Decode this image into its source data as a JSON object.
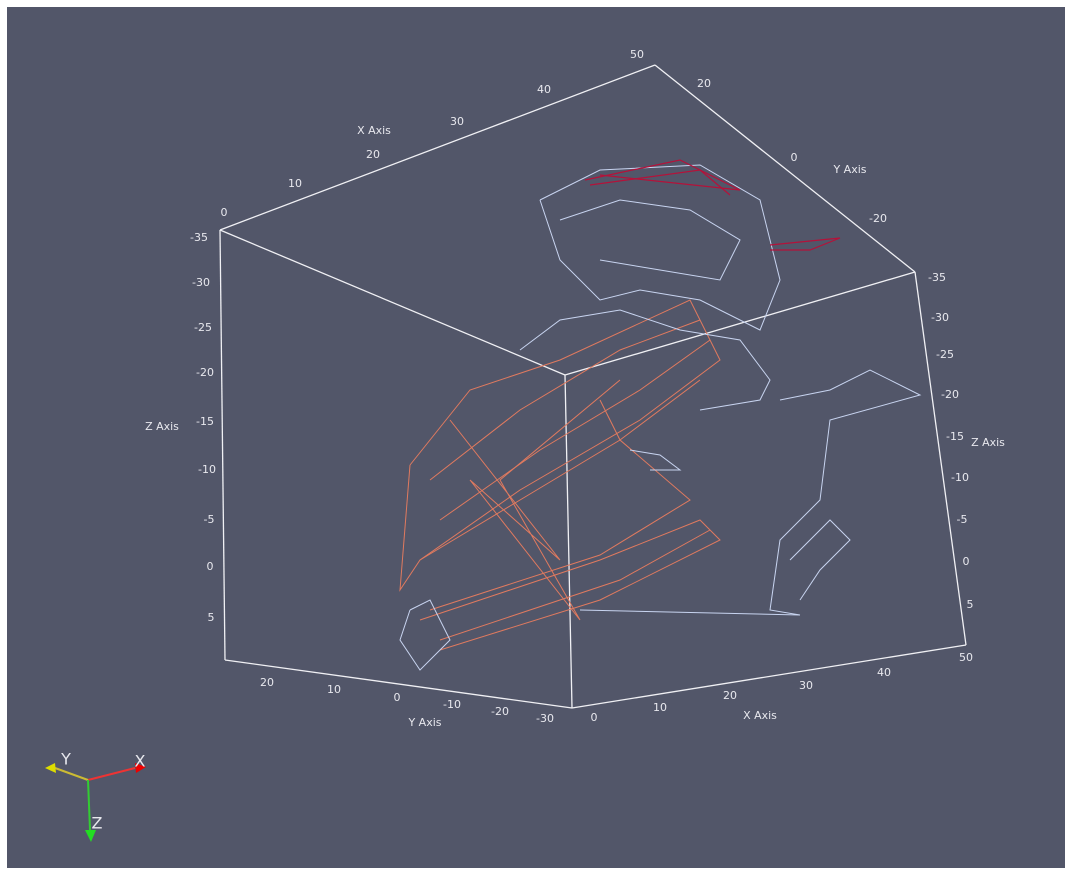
{
  "axes": {
    "top_x": {
      "label": "X Axis",
      "ticks": [
        "0",
        "10",
        "20",
        "30",
        "40",
        "50"
      ]
    },
    "top_y": {
      "label": "Y Axis",
      "ticks": [
        "20",
        "0",
        "-20"
      ]
    },
    "left_z": {
      "label": "Z Axis",
      "ticks": [
        "-35",
        "-30",
        "-25",
        "-20",
        "-15",
        "-10",
        "-5",
        "0",
        "5"
      ]
    },
    "right_z": {
      "label": "Z Axis",
      "ticks": [
        "-35",
        "-30",
        "-25",
        "-20",
        "-15",
        "-10",
        "-5",
        "0",
        "5"
      ]
    },
    "bottom_y": {
      "label": "Y Axis",
      "ticks": [
        "20",
        "10",
        "0",
        "-10",
        "-20",
        "-30"
      ]
    },
    "bottom_x": {
      "label": "X Axis",
      "ticks": [
        "0",
        "10",
        "20",
        "30",
        "40",
        "50"
      ]
    }
  },
  "orientation": {
    "x": "X",
    "y": "Y",
    "z": "Z"
  }
}
